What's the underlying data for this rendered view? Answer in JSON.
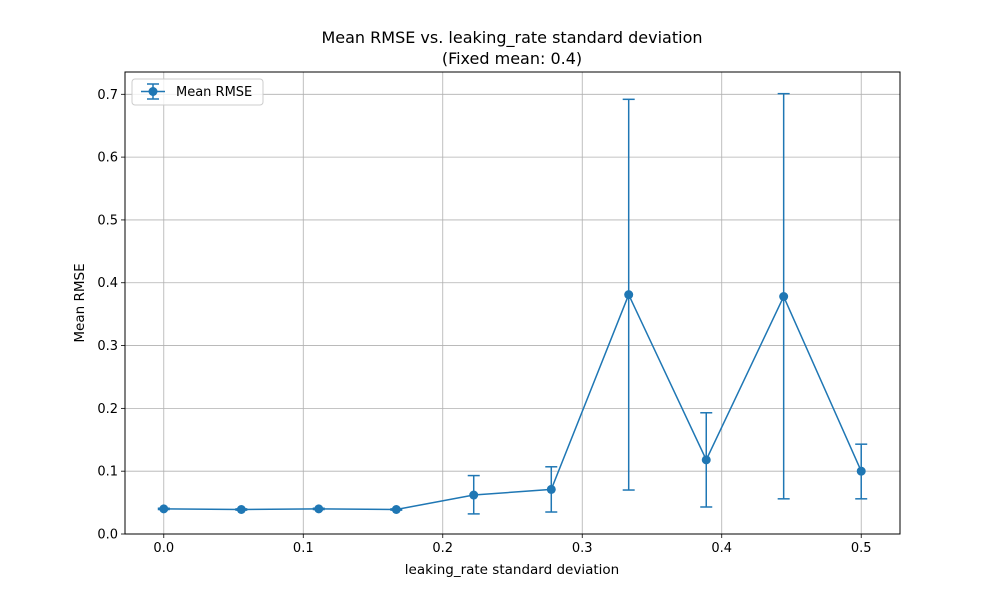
{
  "chart_data": {
    "type": "line",
    "title": "Mean RMSE vs. leaking_rate standard deviation",
    "subtitle": "(Fixed mean: 0.4)",
    "xlabel": "leaking_rate standard deviation",
    "ylabel": "Mean RMSE",
    "xlim": [
      -0.0278,
      0.5278
    ],
    "ylim": [
      0.0,
      0.7355
    ],
    "xticks": [
      0.0,
      0.1,
      0.2,
      0.3,
      0.4,
      0.5
    ],
    "xtick_labels": [
      "0.0",
      "0.1",
      "0.2",
      "0.3",
      "0.4",
      "0.5"
    ],
    "yticks": [
      0.0,
      0.1,
      0.2,
      0.3,
      0.4,
      0.5,
      0.6,
      0.7
    ],
    "ytick_labels": [
      "0.0",
      "0.1",
      "0.2",
      "0.3",
      "0.4",
      "0.5",
      "0.6",
      "0.7"
    ],
    "grid": true,
    "legend_position": "top-left",
    "series": [
      {
        "name": "Mean RMSE",
        "color": "#1f77b4",
        "x": [
          0.0,
          0.0556,
          0.1111,
          0.1667,
          0.2222,
          0.2778,
          0.3333,
          0.3889,
          0.4444,
          0.5
        ],
        "y": [
          0.04,
          0.039,
          0.04,
          0.039,
          0.062,
          0.071,
          0.381,
          0.118,
          0.378,
          0.1
        ],
        "err_low": [
          0.039,
          0.038,
          0.039,
          0.038,
          0.032,
          0.035,
          0.07,
          0.043,
          0.056,
          0.056
        ],
        "err_high": [
          0.041,
          0.04,
          0.041,
          0.04,
          0.093,
          0.107,
          0.692,
          0.193,
          0.701,
          0.143
        ]
      }
    ]
  }
}
